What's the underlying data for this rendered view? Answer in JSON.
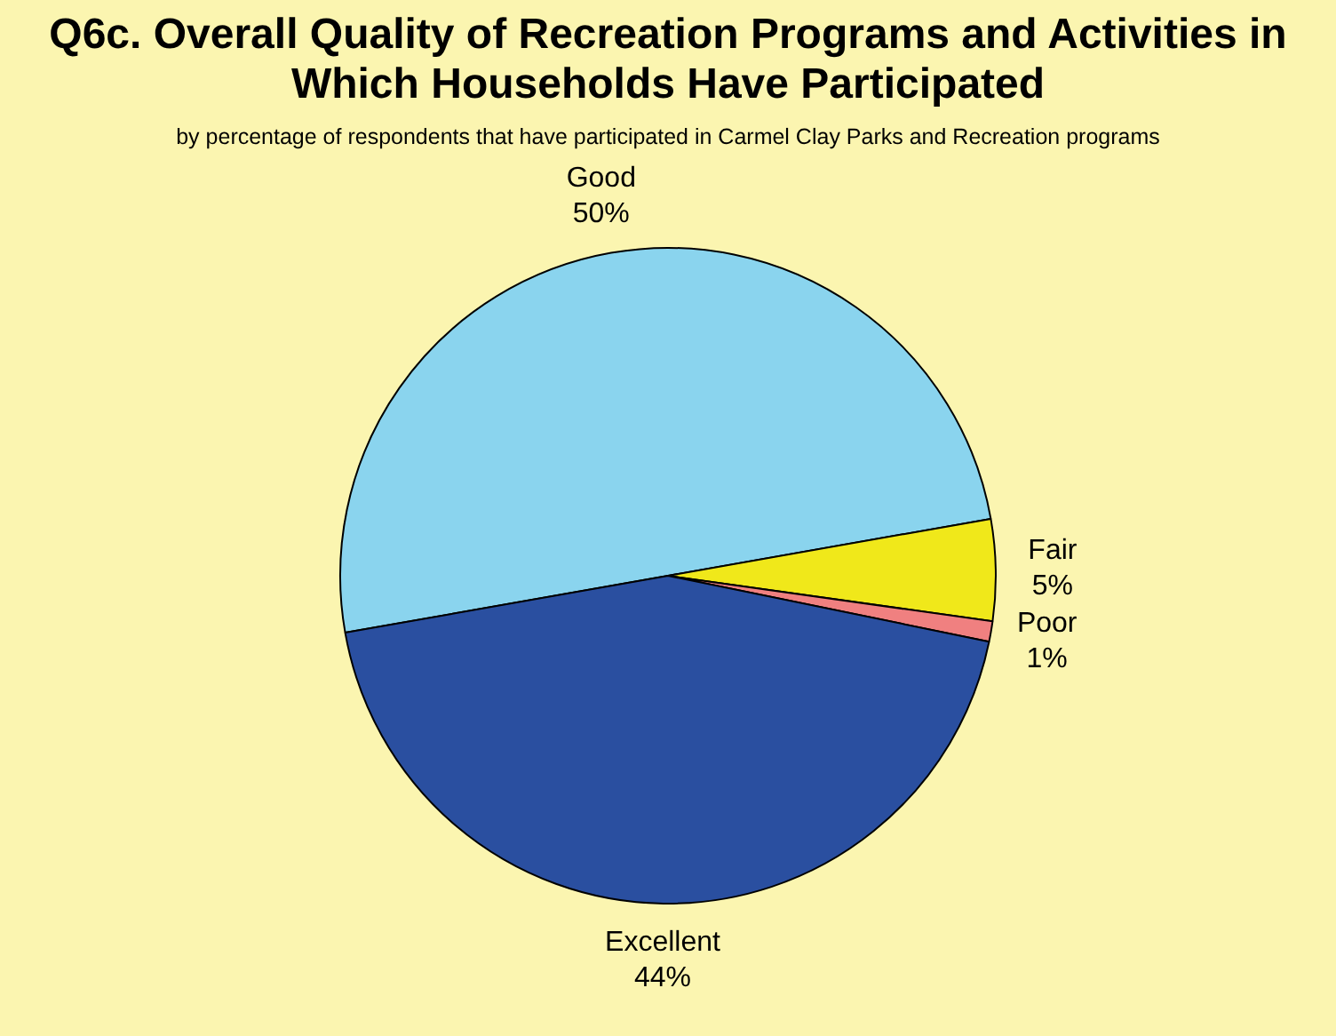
{
  "chart_data": {
    "type": "pie",
    "title": "Q6c. Overall Quality of Recreation Programs and Activities in Which Households Have Participated",
    "subtitle": "by percentage of respondents that have participated in Carmel Clay Parks and Recreation programs",
    "categories": [
      "Good",
      "Fair",
      "Poor",
      "Excellent"
    ],
    "values": [
      50,
      5,
      1,
      44
    ],
    "value_labels": [
      "50%",
      "5%",
      "1%",
      "44%"
    ],
    "colors": [
      "#8ad4ee",
      "#f0e81a",
      "#f08080",
      "#2a4fa0"
    ],
    "legend": false
  }
}
